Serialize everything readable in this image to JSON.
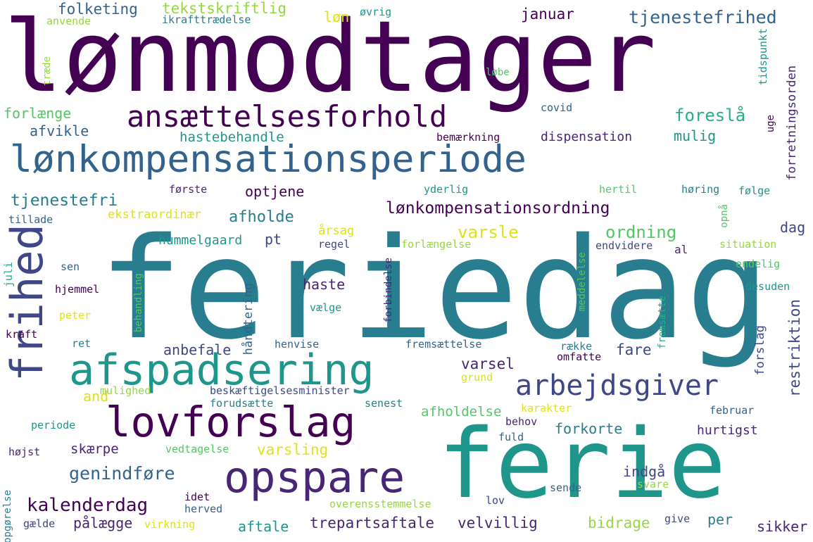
{
  "palette": {
    "p1": "#440154",
    "p2": "#482677",
    "p3": "#3f4788",
    "p4": "#33638d",
    "p5": "#287d8e",
    "p6": "#1f968b",
    "p7": "#29af7f",
    "p8": "#55c667",
    "p9": "#95d840",
    "p10": "#dce319"
  },
  "words": [
    "lønmodtager",
    "feriedag",
    "ferie",
    "afspadsering",
    "lønkompensationsperiode",
    "frihed",
    "ansættelsesforhold",
    "lovforslag",
    "opspare",
    "arbejdsgiver",
    "lønkompensationsordning",
    "restriktion",
    "foreslå",
    "tjenestefrihed",
    "kalenderdag",
    "genindføre",
    "tjenestefri",
    "varsle",
    "ordning",
    "januar",
    "folketing",
    "tekstskriftlig",
    "løn",
    "øvrig",
    "anvende",
    "ikrafttrædelse",
    "træde",
    "tidspunkt",
    "forretningsorden",
    "løbe",
    "hastebehandle",
    "mulig",
    "afvikle",
    "forlænge",
    "covid",
    "uge",
    "bemærkning",
    "dispensation",
    "optjene",
    "første",
    "yderlig",
    "hertil",
    "høring",
    "følge",
    "ekstraordinær",
    "afholde",
    "tillade",
    "opnå",
    "årsag",
    "pt",
    "hummelgaard",
    "regel",
    "forlængelse",
    "endvidere",
    "al",
    "situation",
    "dag",
    "meddelelse",
    "juli",
    "sen",
    "hjemmel",
    "haste",
    "forbindelse",
    "håndtering",
    "endelig",
    "desuden",
    "peter",
    "vælge",
    "behandling",
    "fremsætte",
    "forslag",
    "kraft",
    "ret",
    "henvise",
    "fremsættelse",
    "række",
    "anbefale",
    "fare",
    "varsel",
    "omfatte",
    "and",
    "mulighed",
    "beskæftigelsesminister",
    "grund",
    "forudsætte",
    "senest",
    "karakter",
    "februar",
    "periode",
    "afholdelse",
    "behov",
    "forkorte",
    "hurtigst",
    "skærpe",
    "varsling",
    "vedtagelse",
    "fuld",
    "højst",
    "indgå",
    "svare",
    "sende",
    "idet",
    "herved",
    "overensstemmelse",
    "opgørelse",
    "lov",
    "gælde",
    "pålægge",
    "virkning",
    "aftale",
    "trepartsaftale",
    "velvillig",
    "bidrage",
    "give",
    "per",
    "sikker"
  ]
}
